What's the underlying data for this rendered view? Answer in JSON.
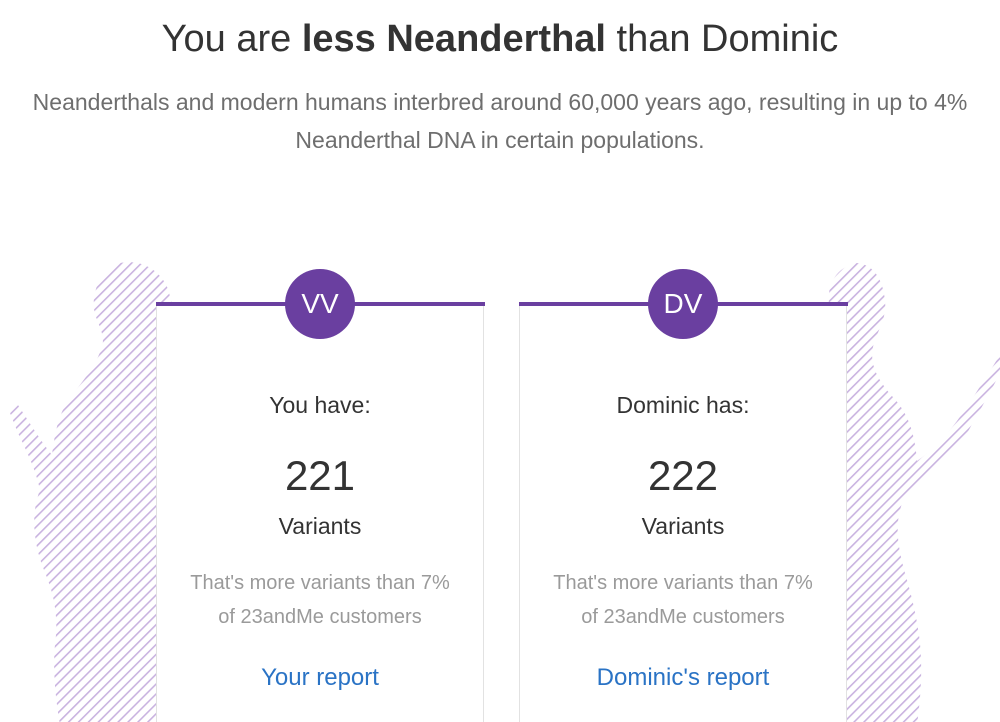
{
  "header": {
    "title_prefix": "You are ",
    "title_emphasis": "less Neanderthal",
    "title_suffix": " than Dominic",
    "subtitle": "Neanderthals and modern humans interbred around 60,000 years ago, resulting in up to 4% Neanderthal DNA in certain populations."
  },
  "colors": {
    "accent": "#6a3fa0",
    "silhouette_stripe": "#c9b3e0",
    "link": "#2a73c5"
  },
  "cards": [
    {
      "initials": "VV",
      "label": "You have:",
      "count": "221",
      "unit": "Variants",
      "note_line1": "That's more variants than 7%",
      "note_line2": "of 23andMe customers",
      "link": "Your report"
    },
    {
      "initials": "DV",
      "label": "Dominic has:",
      "count": "222",
      "unit": "Variants",
      "note_line1": "That's more variants than 7%",
      "note_line2": "of 23andMe customers",
      "link": "Dominic's report"
    }
  ]
}
